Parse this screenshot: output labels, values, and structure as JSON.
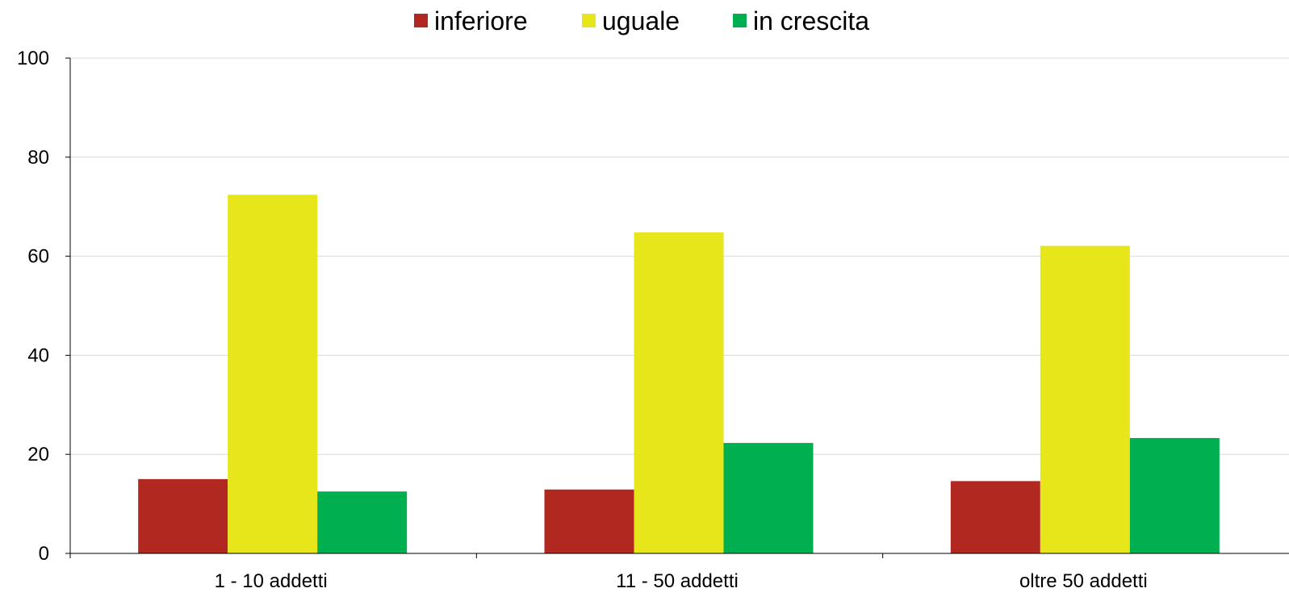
{
  "chart_data": {
    "type": "bar",
    "title": "",
    "xlabel": "",
    "ylabel": "",
    "categories": [
      "1 - 10 addetti",
      "11 - 50 addetti",
      "oltre 50 addetti"
    ],
    "series": [
      {
        "name": "inferiore",
        "color": "#b0281f",
        "values": [
          15.0,
          12.9,
          14.6
        ]
      },
      {
        "name": "uguale",
        "color": "#e6e61a",
        "values": [
          72.4,
          64.8,
          62.1
        ]
      },
      {
        "name": "in crescita",
        "color": "#00b050",
        "values": [
          12.5,
          22.3,
          23.3
        ]
      }
    ],
    "ylim": [
      0,
      100
    ],
    "yticks": [
      0,
      20,
      40,
      60,
      80,
      100
    ],
    "grid": true,
    "legend_position": "top-center",
    "gridline_color": "#d9d9d9",
    "axis_color": "#000000"
  }
}
